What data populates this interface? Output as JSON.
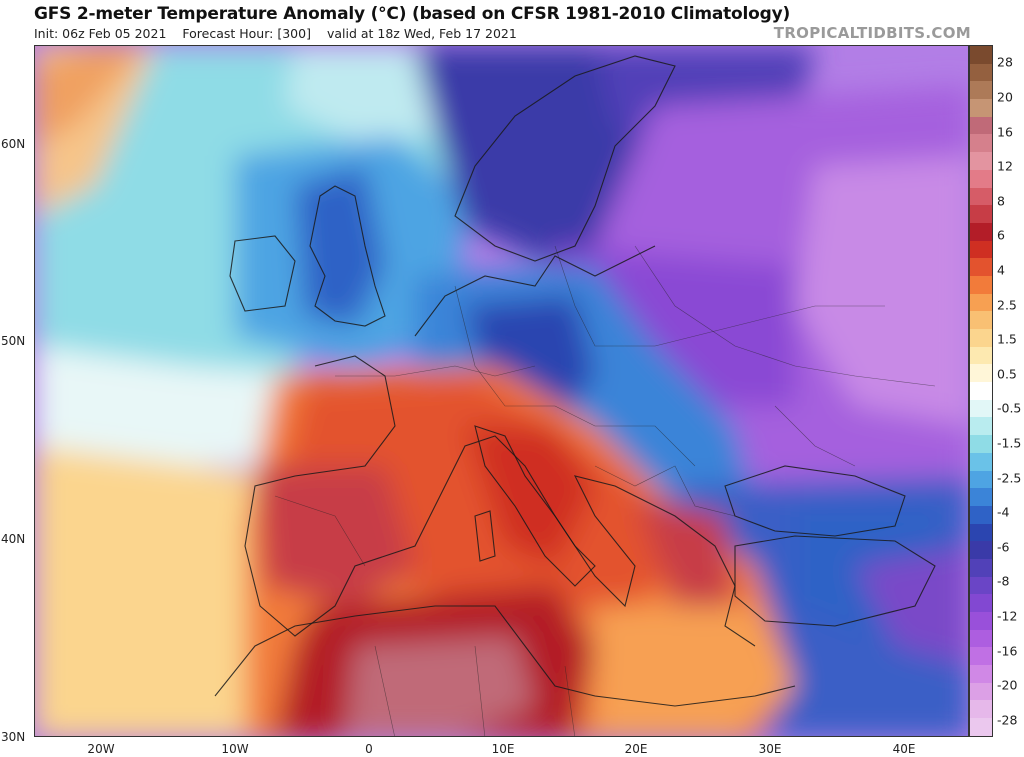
{
  "header": {
    "title": "GFS 2-meter Temperature Anomaly (°C) (based on CFSR 1981-2010 Climatology)",
    "init": "Init: 06z Feb 05 2021",
    "forecast_hour": "Forecast Hour: [300]",
    "valid": "valid at 18z Wed, Feb 17 2021",
    "brand": "TROPICALTIDBITS.COM"
  },
  "map": {
    "lon_range": [
      -25,
      45
    ],
    "lat_range": [
      30,
      65
    ],
    "lat_labels": [
      {
        "lat": 60,
        "text": "60N"
      },
      {
        "lat": 50,
        "text": "50N"
      },
      {
        "lat": 40,
        "text": "40N"
      },
      {
        "lat": 30,
        "text": "30N"
      }
    ],
    "lon_labels": [
      {
        "lon": -20,
        "text": "20W"
      },
      {
        "lon": -10,
        "text": "10W"
      },
      {
        "lon": 0,
        "text": "0"
      },
      {
        "lon": 10,
        "text": "10E"
      },
      {
        "lon": 20,
        "text": "20E"
      },
      {
        "lon": 30,
        "text": "30E"
      },
      {
        "lon": 40,
        "text": "40E"
      }
    ]
  },
  "colorbar": {
    "segments": [
      {
        "color": "#7a4a2e"
      },
      {
        "color": "#94603f"
      },
      {
        "color": "#ad7a58"
      },
      {
        "color": "#c69574"
      },
      {
        "color": "#c06a78"
      },
      {
        "color": "#d5808c"
      },
      {
        "color": "#e394a0"
      },
      {
        "color": "#e37b88"
      },
      {
        "color": "#d65c67"
      },
      {
        "color": "#c73d46"
      },
      {
        "color": "#b31d28"
      },
      {
        "color": "#cf2f22"
      },
      {
        "color": "#e3532e"
      },
      {
        "color": "#f27b3a"
      },
      {
        "color": "#f7a052"
      },
      {
        "color": "#f9c073"
      },
      {
        "color": "#fbd58e"
      },
      {
        "color": "#fde9b0"
      },
      {
        "color": "#fff6d8"
      },
      {
        "color": "#ffffff"
      },
      {
        "color": "#e2f7f7"
      },
      {
        "color": "#b9ecef"
      },
      {
        "color": "#8fdce6"
      },
      {
        "color": "#6ac2e8"
      },
      {
        "color": "#4ea4e3"
      },
      {
        "color": "#3b84d8"
      },
      {
        "color": "#2f62c6"
      },
      {
        "color": "#2b45b0"
      },
      {
        "color": "#3a3aa8"
      },
      {
        "color": "#5141b8"
      },
      {
        "color": "#6a45c6"
      },
      {
        "color": "#8248d2"
      },
      {
        "color": "#9950da"
      },
      {
        "color": "#ad5ee0"
      },
      {
        "color": "#c070e4"
      },
      {
        "color": "#d088e6"
      },
      {
        "color": "#dca0e6"
      },
      {
        "color": "#e6b8ea"
      },
      {
        "color": "#ebc8ee"
      }
    ],
    "ticks": [
      {
        "value": "28",
        "pos": 0.025
      },
      {
        "value": "20",
        "pos": 0.075
      },
      {
        "value": "16",
        "pos": 0.125
      },
      {
        "value": "12",
        "pos": 0.175
      },
      {
        "value": "8",
        "pos": 0.225
      },
      {
        "value": "6",
        "pos": 0.275
      },
      {
        "value": "4",
        "pos": 0.325
      },
      {
        "value": "2.5",
        "pos": 0.375
      },
      {
        "value": "1.5",
        "pos": 0.425
      },
      {
        "value": "0.5",
        "pos": 0.475
      },
      {
        "value": "-0.5",
        "pos": 0.525
      },
      {
        "value": "-1.5",
        "pos": 0.575
      },
      {
        "value": "-2.5",
        "pos": 0.625
      },
      {
        "value": "-4",
        "pos": 0.675
      },
      {
        "value": "-6",
        "pos": 0.725
      },
      {
        "value": "-8",
        "pos": 0.775
      },
      {
        "value": "-12",
        "pos": 0.825
      },
      {
        "value": "-16",
        "pos": 0.875
      },
      {
        "value": "-20",
        "pos": 0.925
      },
      {
        "value": "-28",
        "pos": 0.975
      }
    ]
  }
}
